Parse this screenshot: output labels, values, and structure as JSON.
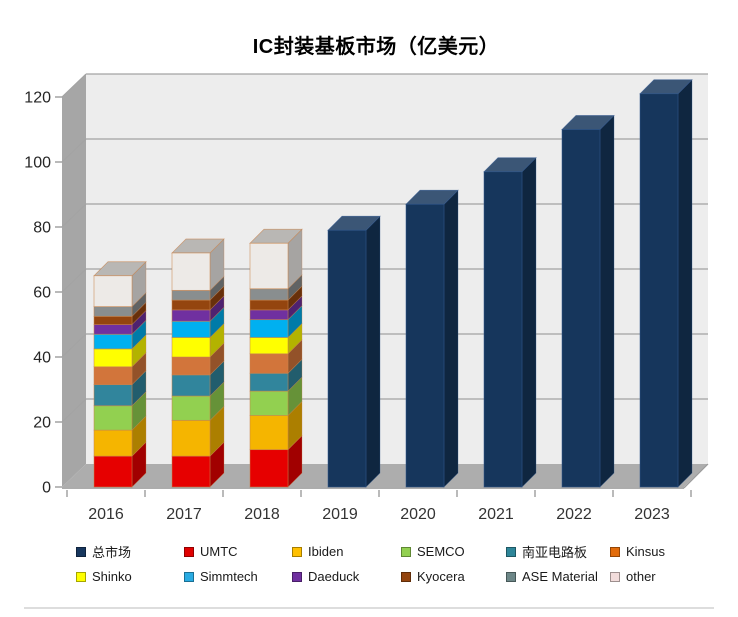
{
  "chart_data": {
    "type": "bar",
    "variant": "3d-column-stacked",
    "title": "IC封装基板市场（亿美元）",
    "xlabel": "",
    "ylabel": "",
    "categories": [
      "2016",
      "2017",
      "2018",
      "2019",
      "2020",
      "2021",
      "2022",
      "2023"
    ],
    "ylim": [
      0,
      120
    ],
    "yticks": [
      0,
      20,
      40,
      60,
      80,
      100,
      120
    ],
    "grid": true,
    "legend_position": "bottom",
    "totals": [
      65,
      72,
      75,
      79,
      87,
      97,
      110,
      121
    ],
    "series": [
      {
        "name": "总市场",
        "role": "total",
        "color": "#16365C",
        "legend_color": "#17375E",
        "values": [
          null,
          null,
          null,
          79,
          87,
          97,
          110,
          121
        ]
      },
      {
        "name": "UMTC",
        "role": "stack",
        "color": "#E60000",
        "legend_color": "#E00000",
        "values": [
          9.5,
          9.5,
          11.5,
          null,
          null,
          null,
          null,
          null
        ]
      },
      {
        "name": "Ibiden",
        "role": "stack",
        "color": "#F5B500",
        "legend_color": "#FFC000",
        "values": [
          8,
          11,
          10.5,
          null,
          null,
          null,
          null,
          null
        ]
      },
      {
        "name": "SEMCO",
        "role": "stack",
        "color": "#92D050",
        "legend_color": "#92D050",
        "values": [
          7.5,
          7.5,
          7.5,
          null,
          null,
          null,
          null,
          null
        ]
      },
      {
        "name": "南亚电路板",
        "role": "stack",
        "color": "#31859C",
        "legend_color": "#2E8699",
        "values": [
          6.5,
          6.5,
          5.5,
          null,
          null,
          null,
          null,
          null
        ]
      },
      {
        "name": "Kinsus",
        "role": "stack",
        "color": "#D2753B",
        "legend_color": "#E26B0A",
        "values": [
          5.5,
          5.5,
          6,
          null,
          null,
          null,
          null,
          null
        ]
      },
      {
        "name": "Shinko",
        "role": "stack",
        "color": "#FFFF00",
        "legend_color": "#FFFF00",
        "values": [
          5.5,
          6,
          5,
          null,
          null,
          null,
          null,
          null
        ]
      },
      {
        "name": "Simmtech",
        "role": "stack",
        "color": "#00B0F0",
        "legend_color": "#29ABE2",
        "values": [
          4.5,
          5,
          5.5,
          null,
          null,
          null,
          null,
          null
        ]
      },
      {
        "name": "Daeduck",
        "role": "stack",
        "color": "#7030A0",
        "legend_color": "#7030A0",
        "values": [
          3,
          3.5,
          3,
          null,
          null,
          null,
          null,
          null
        ]
      },
      {
        "name": "Kyocera",
        "role": "stack",
        "color": "#94450F",
        "legend_color": "#94450F",
        "values": [
          2.5,
          3,
          3,
          null,
          null,
          null,
          null,
          null
        ]
      },
      {
        "name": "ASE Material",
        "role": "stack",
        "color": "#898E8F",
        "legend_color": "#6D8788",
        "values": [
          3,
          3,
          3.5,
          null,
          null,
          null,
          null,
          null
        ]
      },
      {
        "name": "other",
        "role": "stack",
        "color": "#EDEAE7",
        "legend_color": "#F2DCDB",
        "border": "#C8824B",
        "values": [
          9.5,
          11.5,
          14,
          null,
          null,
          null,
          null,
          null
        ]
      }
    ],
    "stack_order_bottom_to_top": [
      "UMTC",
      "Ibiden",
      "SEMCO",
      "南亚电路板",
      "Kinsus",
      "Shinko",
      "Simmtech",
      "Daeduck",
      "Kyocera",
      "ASE Material",
      "other"
    ],
    "legend_order": [
      "总市场",
      "UMTC",
      "Ibiden",
      "SEMCO",
      "南亚电路板",
      "Kinsus",
      "Shinko",
      "Simmtech",
      "Daeduck",
      "Kyocera",
      "ASE Material",
      "other"
    ]
  },
  "colors": {
    "background": "#FFFFFF",
    "wall_back": "#EDEDED",
    "wall_left": "#A6A6A6",
    "floor": "#ADADAD",
    "gridline": "#A3A3A3",
    "axis_tick": "#8C8C8C",
    "axis_text": "#262626",
    "x_label_text": "#333333",
    "title_text": "#000000",
    "legend_text": "#1A1A1A",
    "stack_outline": "#C8824B",
    "navy_outline": "#33598F"
  }
}
